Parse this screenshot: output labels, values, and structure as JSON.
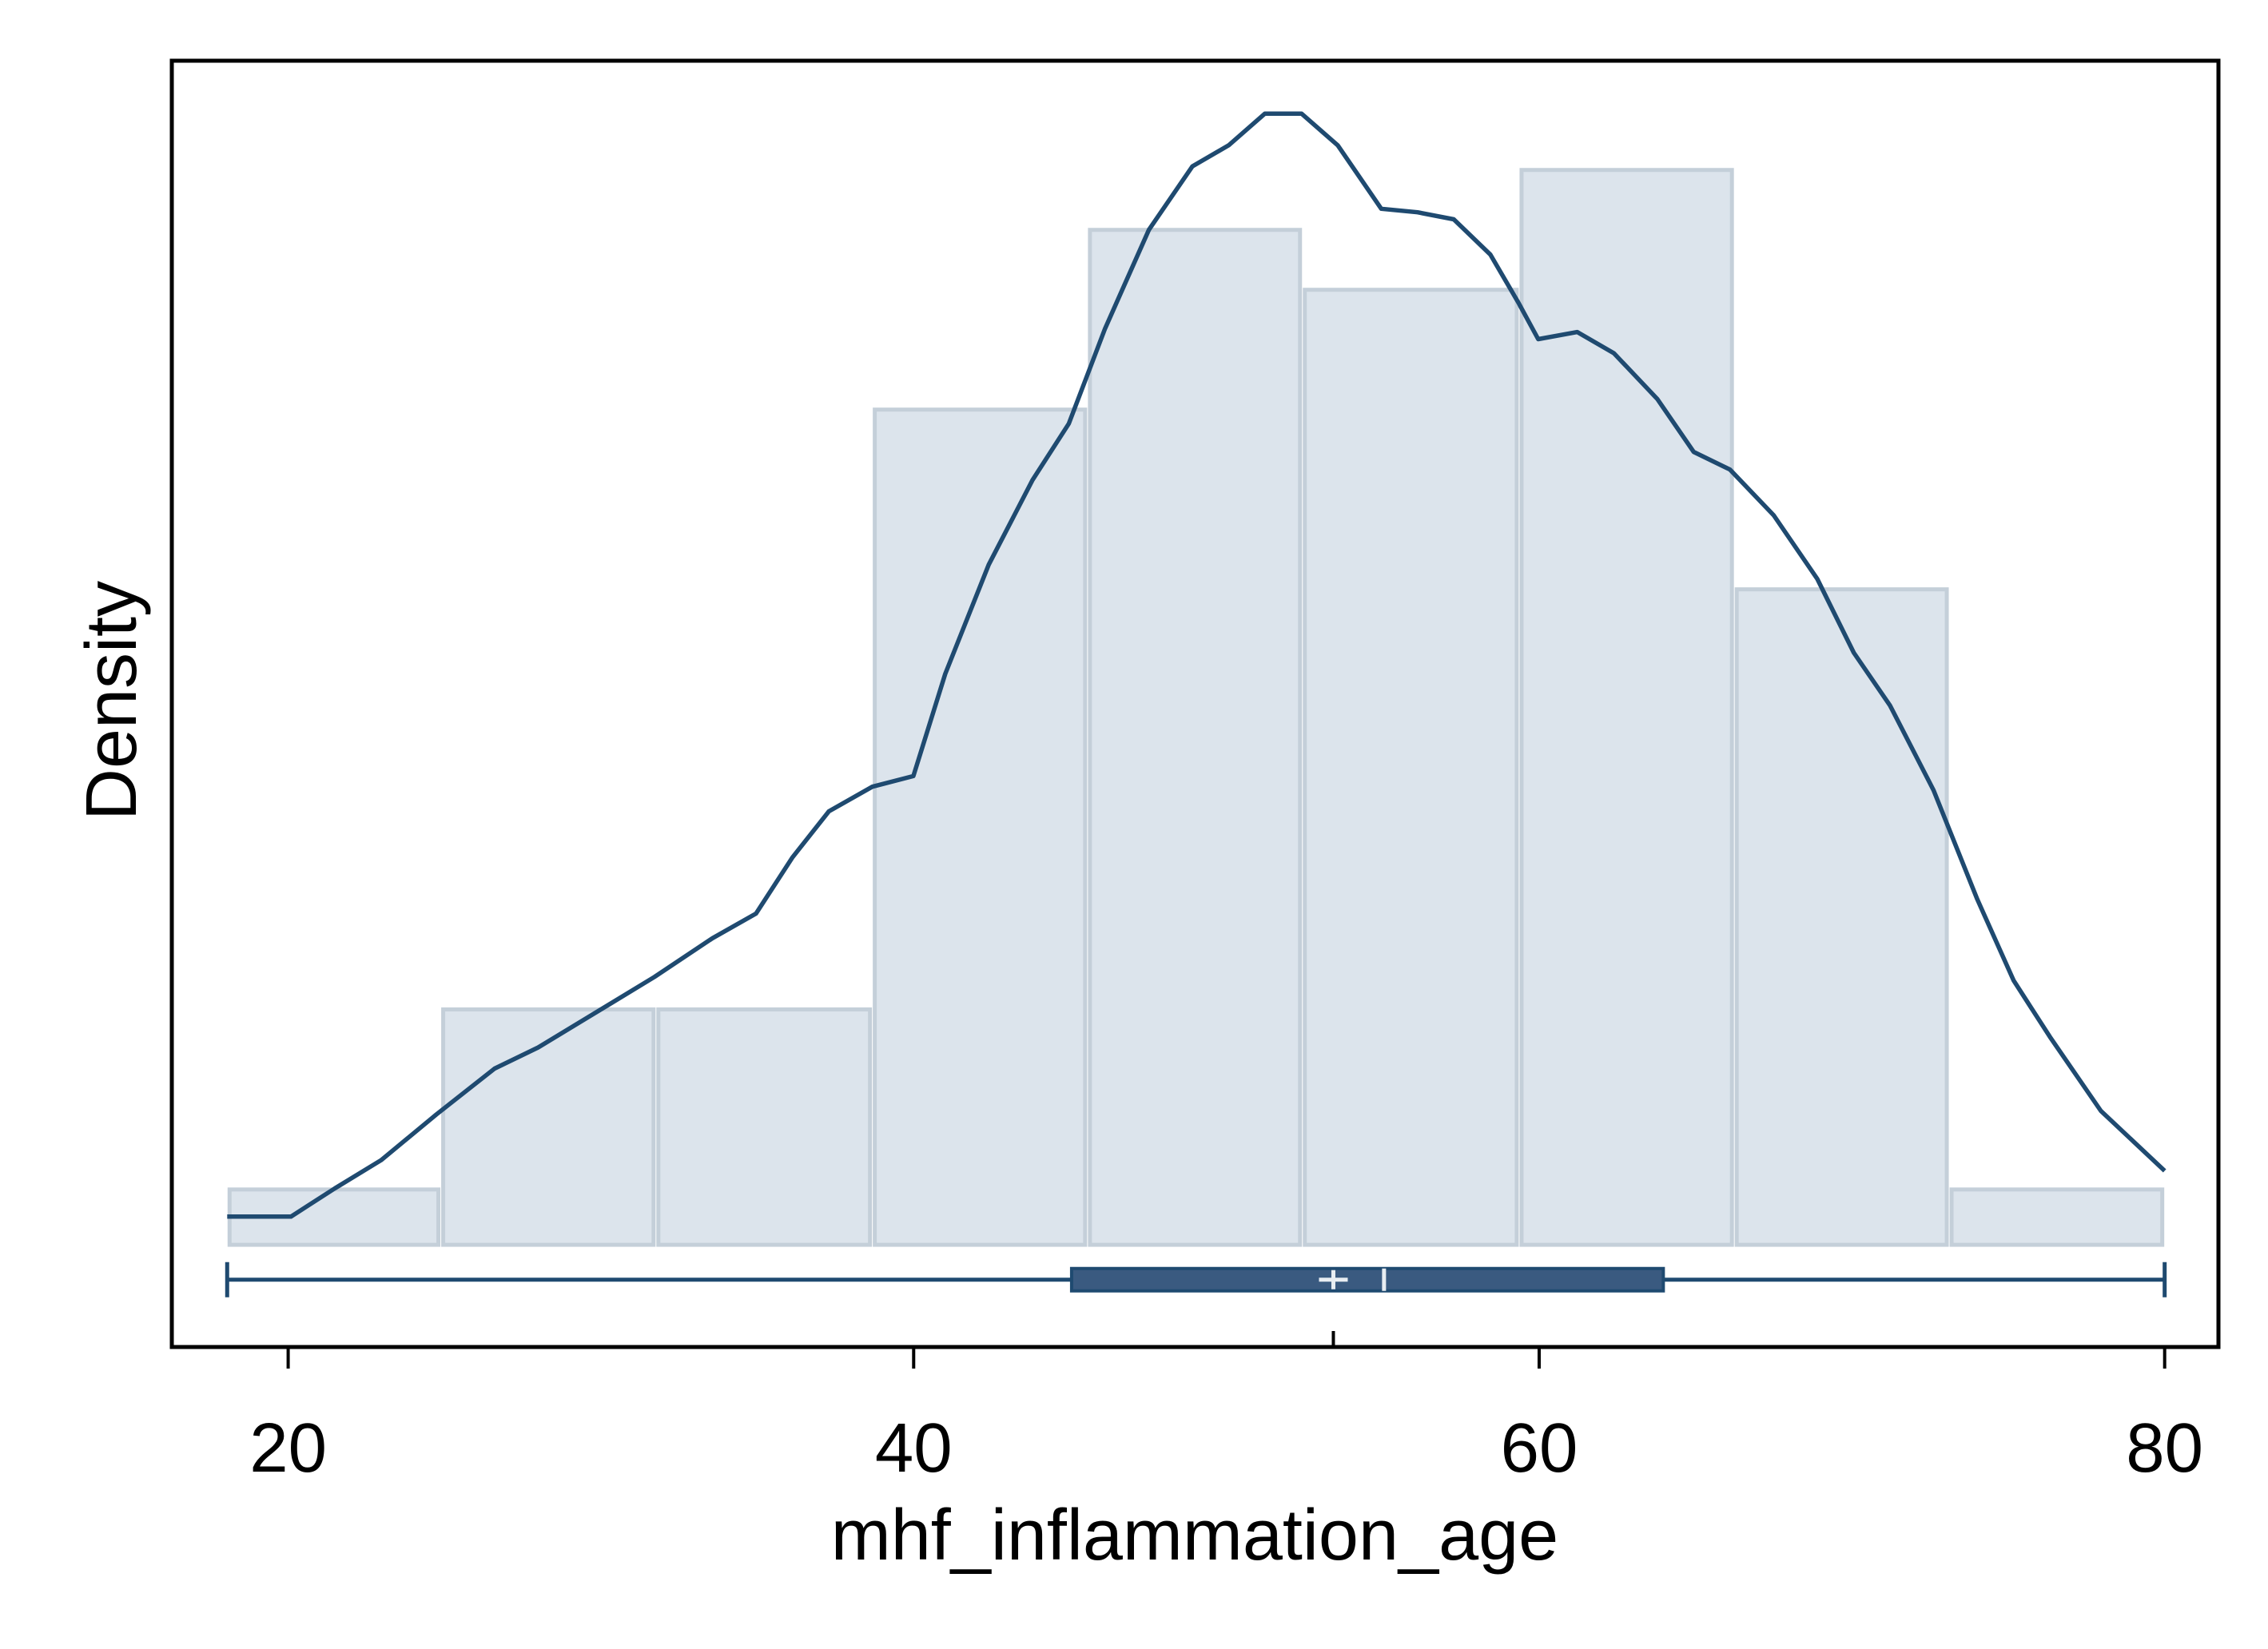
{
  "chart_data": {
    "type": "histogram",
    "x_label": "mhf_inflammation_age",
    "y_label": "Density",
    "bins": [
      18.05,
      24.88,
      31.76,
      38.68,
      45.56,
      52.43,
      59.36,
      66.24,
      73.11,
      80.0
    ],
    "values": [
      0.00157,
      0.00668,
      0.00668,
      0.0237,
      0.0288,
      0.0271,
      0.0305,
      0.0186,
      0.00157
    ],
    "bar_color": "#dce4ec",
    "bar_edge_color": "#c4cfd9",
    "density": {
      "color": "#1f4a70",
      "x": [
        18.05,
        20.09,
        21.49,
        22.97,
        24.74,
        26.6,
        27.99,
        29.85,
        31.71,
        33.57,
        34.96,
        36.13,
        37.29,
        38.68,
        39.99,
        41.01,
        42.4,
        43.8,
        44.96,
        46.12,
        47.52,
        48.91,
        50.07,
        51.23,
        52.4,
        53.56,
        54.95,
        56.11,
        57.27,
        58.44,
        59.36,
        59.97,
        61.22,
        62.39,
        63.78,
        64.94,
        66.1,
        67.5,
        68.89,
        70.06,
        71.22,
        72.61,
        74.01,
        75.17,
        76.33,
        77.96,
        80.0
      ],
      "y": [
        0.0008,
        0.0008,
        0.0016,
        0.0024,
        0.0037,
        0.005,
        0.0056,
        0.0066,
        0.0076,
        0.0087,
        0.0094,
        0.011,
        0.0123,
        0.013,
        0.0133,
        0.0162,
        0.0193,
        0.0217,
        0.0233,
        0.026,
        0.0288,
        0.0306,
        0.0312,
        0.0321,
        0.0321,
        0.0312,
        0.0294,
        0.0293,
        0.0291,
        0.0281,
        0.0267,
        0.0257,
        0.0259,
        0.0253,
        0.024,
        0.0225,
        0.022,
        0.0207,
        0.0189,
        0.0168,
        0.0153,
        0.0129,
        0.0098,
        0.0075,
        0.0059,
        0.0038,
        0.0021
      ]
    },
    "boxplot": {
      "min": 18.05,
      "q1": 45.05,
      "median": 55.04,
      "mean": 53.42,
      "q3": 63.97,
      "max": 80.0,
      "y": -0.00099,
      "color": "#3a5a80",
      "line_color": "#1f4a70"
    },
    "xlim": [
      16.28,
      81.72
    ],
    "ylim": [
      -0.0029,
      0.0336
    ],
    "xticks": [
      20,
      40,
      60,
      80
    ]
  }
}
